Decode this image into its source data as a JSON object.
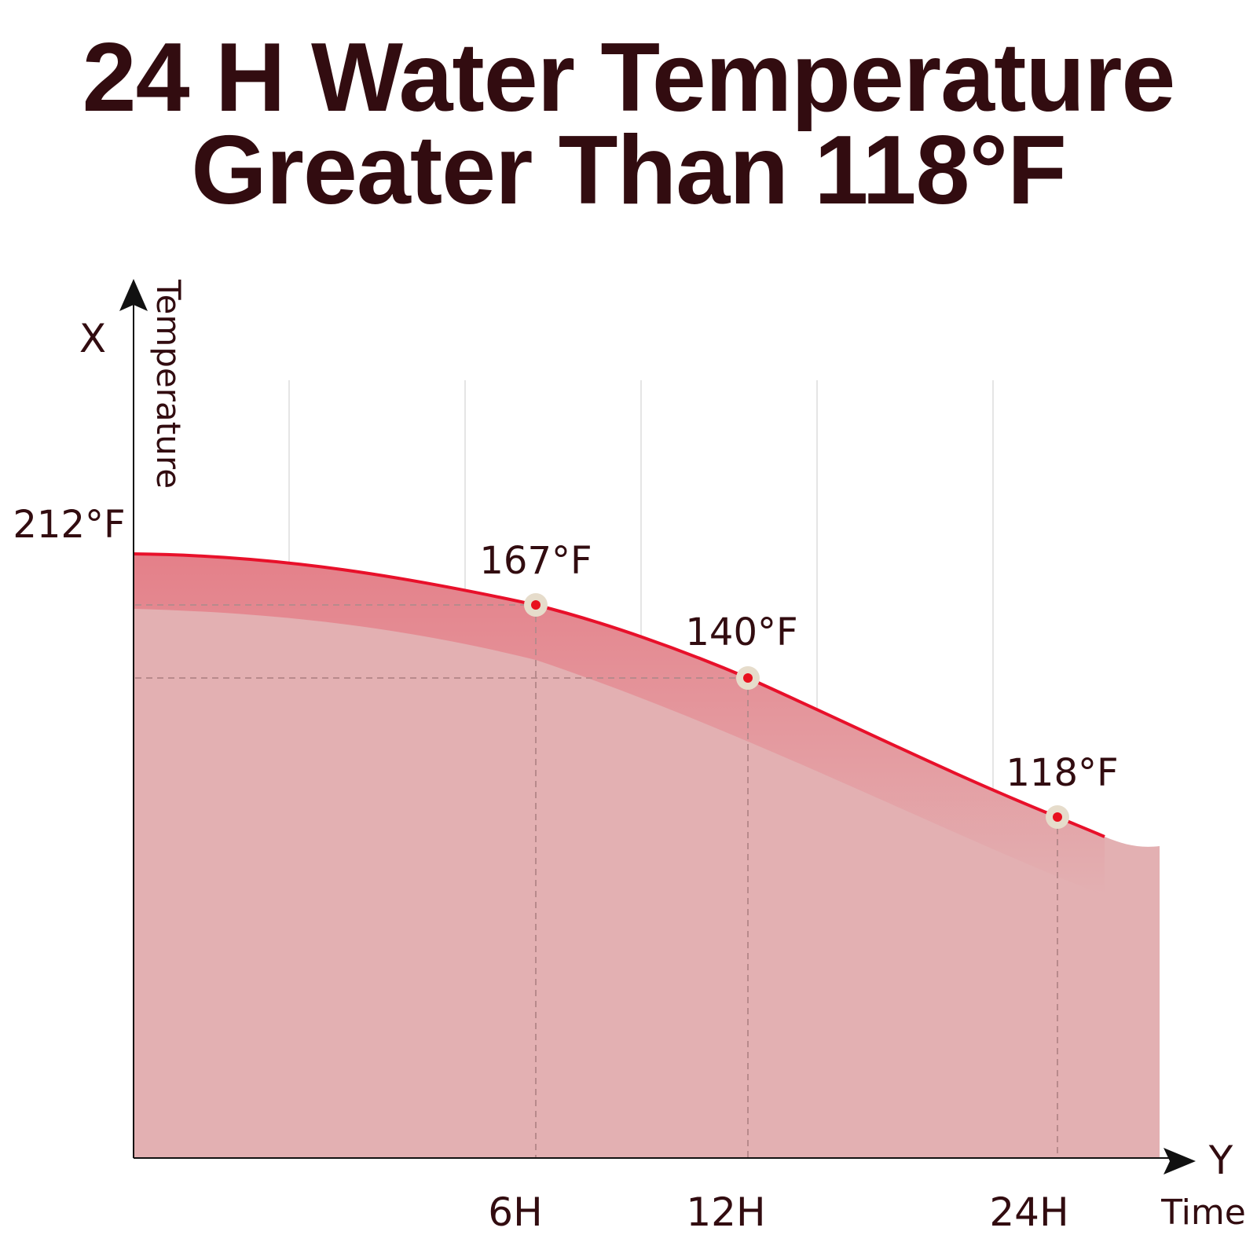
{
  "title": {
    "line1": "24 H Water Temperature",
    "line2": "Greater Than 118°F"
  },
  "colors": {
    "text": "#320c10",
    "curve": "#e8102a",
    "fill": "#e3b0b2",
    "marker_halo": "#e6dccb",
    "marker_dot": "#e8101e",
    "grid": "#e5e5e5"
  },
  "chart_data": {
    "type": "area",
    "y_axis": {
      "letter": "X",
      "label": "Temperature",
      "top_tick": "212°F"
    },
    "x_axis": {
      "letter": "Y",
      "label": "Time",
      "ticks": [
        "6H",
        "12H",
        "24H"
      ]
    },
    "points": [
      {
        "time": "6H",
        "temp": 167,
        "label": "167°F"
      },
      {
        "time": "12H",
        "temp": 140,
        "label": "140°F"
      },
      {
        "time": "24H",
        "temp": 118,
        "label": "118°F"
      }
    ],
    "start_temp": 212,
    "grid": true
  }
}
